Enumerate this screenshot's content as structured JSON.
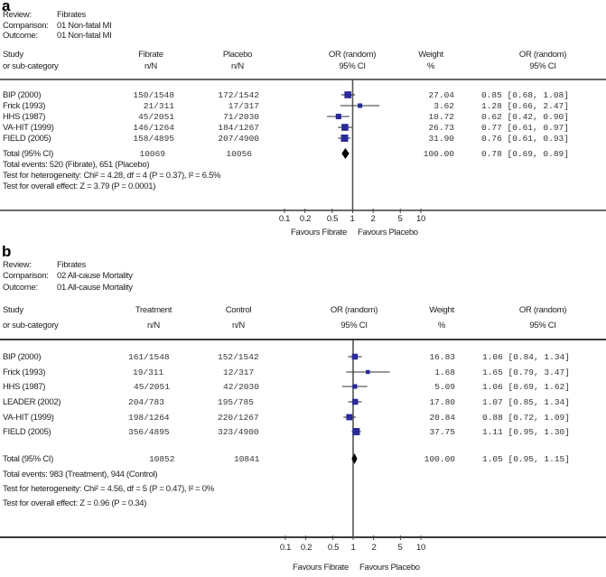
{
  "panels": [
    {
      "letter": "a",
      "meta": [
        {
          "label": "Review:",
          "value": "Fibrates"
        },
        {
          "label": "Comparison:",
          "value": "01 Non-fatal MI"
        },
        {
          "label": "Outcome:",
          "value": "01 Non-fatal MI"
        }
      ],
      "headers": {
        "study": [
          "Study",
          "or sub-category"
        ],
        "treat": [
          "Fibrate",
          "n/N"
        ],
        "control": [
          "Placebo",
          "n/N"
        ],
        "or_plot": [
          "OR (random)",
          "95% CI"
        ],
        "weight": [
          "Weight",
          "%"
        ],
        "or_text": [
          "OR (random)",
          "95% CI"
        ]
      },
      "rows": [
        {
          "study": "BIP (2000)",
          "treat": "150/1548",
          "control": "172/1542",
          "weight": "27.04",
          "or_text": "0.85 [0.68, 1.08]"
        },
        {
          "study": "Frick (1993)",
          "treat": "21/311",
          "control": "17/317",
          "weight": "3.62",
          "or_text": "1.28 [0.66, 2.47]"
        },
        {
          "study": "HHS (1987)",
          "treat": "45/2051",
          "control": "71/2030",
          "weight": "10.72",
          "or_text": "0.62 [0.42, 0.90]"
        },
        {
          "study": "VA-HIT (1999)",
          "treat": "146/1264",
          "control": "184/1267",
          "weight": "26.73",
          "or_text": "0.77 [0.61, 0.97]"
        },
        {
          "study": "FIELD (2005)",
          "treat": "158/4895",
          "control": "207/4900",
          "weight": "31.90",
          "or_text": "0.76 [0.61, 0.93]"
        }
      ],
      "total": {
        "label": "Total (95% CI)",
        "treat": "10069",
        "control": "10056",
        "weight": "100.00",
        "or_text": "0.78 [0.69, 0.89]"
      },
      "notes": [
        "Total events: 520 (Fibrate), 651 (Placebo)",
        "Test for heterogeneity: Chi² = 4.28, df = 4 (P = 0.37), I² = 6.5%",
        "Test for overall effect: Z = 3.79 (P = 0.0001)"
      ],
      "axis_ticks": [
        "0.1",
        "0.2",
        "0.5",
        "1",
        "2",
        "5",
        "10"
      ],
      "favours_left": "Favours Fibrate",
      "favours_right": "Favours Placebo"
    },
    {
      "letter": "b",
      "meta": [
        {
          "label": "Review:",
          "value": "Fibrates"
        },
        {
          "label": "Comparison:",
          "value": "02 All-cause Mortality"
        },
        {
          "label": "Outcome:",
          "value": "01 All-cause Mortality"
        }
      ],
      "headers": {
        "study": [
          "Study",
          "or sub-category"
        ],
        "treat": [
          "Treatment",
          "n/N"
        ],
        "control": [
          "Control",
          "n/N"
        ],
        "or_plot": [
          "OR (random)",
          "95% CI"
        ],
        "weight": [
          "Weight",
          "%"
        ],
        "or_text": [
          "OR (random)",
          "95% CI"
        ]
      },
      "rows": [
        {
          "study": "BIP (2000)",
          "treat": "161/1548",
          "control": "152/1542",
          "weight": "16.83",
          "or_text": "1.06 [0.84, 1.34]"
        },
        {
          "study": "Frick (1993)",
          "treat": "19/311",
          "control": "12/317",
          "weight": "1.68",
          "or_text": "1.65 [0.79, 3.47]"
        },
        {
          "study": "HHS (1987)",
          "treat": "45/2051",
          "control": "42/2030",
          "weight": "5.09",
          "or_text": "1.06 [0.69, 1.62]"
        },
        {
          "study": "LEADER (2002)",
          "treat": "204/783",
          "control": "195/785",
          "weight": "17.80",
          "or_text": "1.07 [0.85, 1.34]"
        },
        {
          "study": "VA-HIT (1999)",
          "treat": "198/1264",
          "control": "220/1267",
          "weight": "20.84",
          "or_text": "0.88 [0.72, 1.09]"
        },
        {
          "study": "FIELD (2005)",
          "treat": "356/4895",
          "control": "323/4900",
          "weight": "37.75",
          "or_text": "1.11 [0.95, 1.30]"
        }
      ],
      "total": {
        "label": "Total (95% CI)",
        "treat": "10852",
        "control": "10841",
        "weight": "100.00",
        "or_text": "1.05 [0.95, 1.15]"
      },
      "notes": [
        "Total events: 983 (Treatment), 944 (Control)",
        "Test for heterogeneity: Chi² = 4.56, df = 5 (P = 0.47), I² = 0%",
        "Test for overall effect: Z = 0.96 (P = 0.34)"
      ],
      "axis_ticks": [
        "0.1",
        "0.2",
        "0.5",
        "1",
        "2",
        "5",
        "10"
      ],
      "favours_left": "Favours Fibrate",
      "favours_right": "Favours Placebo"
    }
  ],
  "colors": {
    "square": "#2a2a9a",
    "line": "#333333",
    "diamond": "#000000",
    "rule": "#6b6b6b"
  },
  "chart_data": [
    {
      "type": "forest",
      "title": "a — Fibrates: Non-fatal MI",
      "xlabel": "OR (random) 95% CI",
      "xscale": "log",
      "xlim": [
        0.1,
        10
      ],
      "x_ticks": [
        0.1,
        0.2,
        0.5,
        1,
        2,
        5,
        10
      ],
      "reference_line": 1,
      "studies": [
        "BIP (2000)",
        "Frick (1993)",
        "HHS (1987)",
        "VA-HIT (1999)",
        "FIELD (2005)"
      ],
      "or": [
        0.85,
        1.28,
        0.62,
        0.77,
        0.76
      ],
      "ci_low": [
        0.68,
        0.66,
        0.42,
        0.61,
        0.61
      ],
      "ci_high": [
        1.08,
        2.47,
        0.9,
        0.97,
        0.93
      ],
      "weight": [
        27.04,
        3.62,
        10.72,
        26.73,
        31.9
      ],
      "pooled": {
        "or": 0.78,
        "ci_low": 0.69,
        "ci_high": 0.89,
        "weight": 100.0
      },
      "legend": {
        "left": "Favours Fibrate",
        "right": "Favours Placebo"
      }
    },
    {
      "type": "forest",
      "title": "b — Fibrates: All-cause Mortality",
      "xlabel": "OR (random) 95% CI",
      "xscale": "log",
      "xlim": [
        0.1,
        10
      ],
      "x_ticks": [
        0.1,
        0.2,
        0.5,
        1,
        2,
        5,
        10
      ],
      "reference_line": 1,
      "studies": [
        "BIP (2000)",
        "Frick (1993)",
        "HHS (1987)",
        "LEADER (2002)",
        "VA-HIT (1999)",
        "FIELD (2005)"
      ],
      "or": [
        1.06,
        1.65,
        1.06,
        1.07,
        0.88,
        1.11
      ],
      "ci_low": [
        0.84,
        0.79,
        0.69,
        0.85,
        0.72,
        0.95
      ],
      "ci_high": [
        1.34,
        3.47,
        1.62,
        1.34,
        1.09,
        1.3
      ],
      "weight": [
        16.83,
        1.68,
        5.09,
        17.8,
        20.84,
        37.75
      ],
      "pooled": {
        "or": 1.05,
        "ci_low": 0.95,
        "ci_high": 1.15,
        "weight": 100.0
      },
      "legend": {
        "left": "Favours Fibrate",
        "right": "Favours Placebo"
      }
    }
  ]
}
